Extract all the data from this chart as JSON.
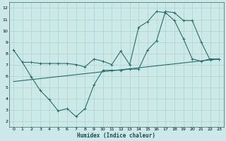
{
  "xlabel": "Humidex (Indice chaleur)",
  "ylabel": "",
  "bg_color": "#cce8e8",
  "grid_color": "#b0d8d0",
  "line_color": "#2a6e6a",
  "xlim": [
    -0.5,
    23.5
  ],
  "ylim": [
    1.5,
    12.5
  ],
  "xticks": [
    0,
    1,
    2,
    3,
    4,
    5,
    6,
    7,
    8,
    9,
    10,
    11,
    12,
    13,
    14,
    15,
    16,
    17,
    18,
    19,
    20,
    21,
    22,
    23
  ],
  "yticks": [
    2,
    3,
    4,
    5,
    6,
    7,
    8,
    9,
    10,
    11,
    12
  ],
  "line1_x": [
    0,
    1,
    2,
    3,
    4,
    5,
    6,
    7,
    8,
    9,
    10,
    11,
    12,
    13,
    14,
    15,
    16,
    17,
    18,
    19,
    20,
    21,
    22,
    23
  ],
  "line1_y": [
    8.3,
    7.2,
    7.2,
    7.1,
    7.1,
    7.1,
    7.1,
    7.0,
    6.8,
    7.5,
    7.3,
    7.0,
    8.2,
    7.0,
    10.3,
    10.8,
    11.7,
    11.6,
    10.9,
    9.3,
    7.5,
    7.3,
    7.5,
    7.5
  ],
  "line2_x": [
    1,
    2,
    3,
    4,
    5,
    6,
    7,
    8,
    9,
    10,
    11,
    12,
    13,
    14,
    15,
    16,
    17,
    18,
    19,
    20,
    21,
    22,
    23
  ],
  "line2_y": [
    7.2,
    5.9,
    4.7,
    3.9,
    2.9,
    3.1,
    2.4,
    3.1,
    5.2,
    6.5,
    6.5,
    6.5,
    6.6,
    6.6,
    8.3,
    9.1,
    11.7,
    11.6,
    10.9,
    10.9,
    9.0,
    7.4,
    7.5
  ],
  "line3_x": [
    0,
    23
  ],
  "line3_y": [
    5.5,
    7.5
  ]
}
